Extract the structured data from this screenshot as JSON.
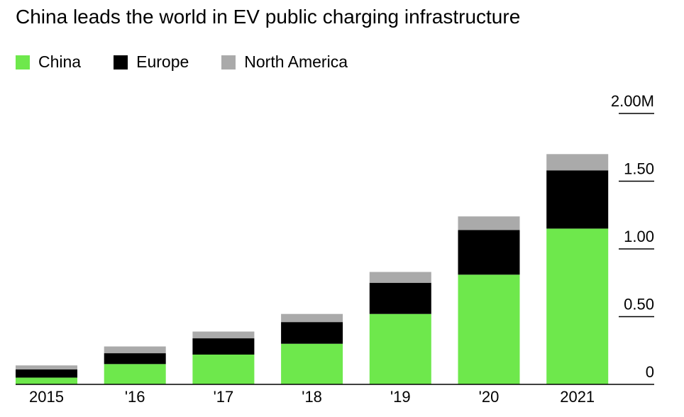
{
  "title": "China leads the world in EV public charging infrastructure",
  "legend": [
    {
      "label": "China",
      "color": "#6ee84c"
    },
    {
      "label": "Europe",
      "color": "#000000"
    },
    {
      "label": "North America",
      "color": "#aaaaaa"
    }
  ],
  "chart_data": {
    "type": "bar",
    "stacked": true,
    "title": "China leads the world in EV public charging infrastructure",
    "categories": [
      "2015",
      "'16",
      "'17",
      "'18",
      "'19",
      "'20",
      "2021"
    ],
    "series": [
      {
        "name": "China",
        "color": "#6ee84c",
        "values": [
          0.05,
          0.15,
          0.22,
          0.3,
          0.52,
          0.81,
          1.15
        ]
      },
      {
        "name": "Europe",
        "color": "#000000",
        "values": [
          0.06,
          0.08,
          0.12,
          0.16,
          0.23,
          0.33,
          0.43
        ]
      },
      {
        "name": "North America",
        "color": "#aaaaaa",
        "values": [
          0.03,
          0.05,
          0.05,
          0.06,
          0.08,
          0.1,
          0.12
        ]
      }
    ],
    "y_ticks": [
      {
        "value": 0,
        "label": "0"
      },
      {
        "value": 0.5,
        "label": "0.50"
      },
      {
        "value": 1.0,
        "label": "1.00"
      },
      {
        "value": 1.5,
        "label": "1.50"
      },
      {
        "value": 2.0,
        "label": "2.00M"
      }
    ],
    "ylim": [
      0,
      2.0
    ],
    "y_axis_side": "right",
    "legend_position": "top-left",
    "grid": false
  }
}
